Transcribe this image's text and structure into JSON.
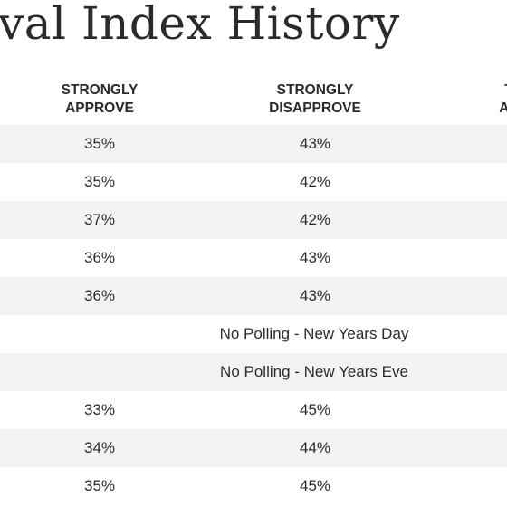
{
  "title": "val Index History",
  "columns": {
    "strongly_approve": [
      "STRONGLY",
      "APPROVE"
    ],
    "strongly_disapprove": [
      "STRONGLY",
      "DISAPPROVE"
    ],
    "total_approve": [
      "T",
      "AP"
    ]
  },
  "rows": [
    {
      "approve": "35%",
      "disapprove": "43%",
      "note": ""
    },
    {
      "approve": "35%",
      "disapprove": "42%",
      "note": ""
    },
    {
      "approve": "37%",
      "disapprove": "42%",
      "note": ""
    },
    {
      "approve": "36%",
      "disapprove": "43%",
      "note": ""
    },
    {
      "approve": "36%",
      "disapprove": "43%",
      "note": ""
    },
    {
      "approve": "",
      "disapprove": "",
      "note": "No Polling - New Years Day"
    },
    {
      "approve": "",
      "disapprove": "",
      "note": "No Polling - New Years Eve"
    },
    {
      "approve": "33%",
      "disapprove": "45%",
      "note": ""
    },
    {
      "approve": "34%",
      "disapprove": "44%",
      "note": ""
    },
    {
      "approve": "35%",
      "disapprove": "45%",
      "note": ""
    }
  ]
}
